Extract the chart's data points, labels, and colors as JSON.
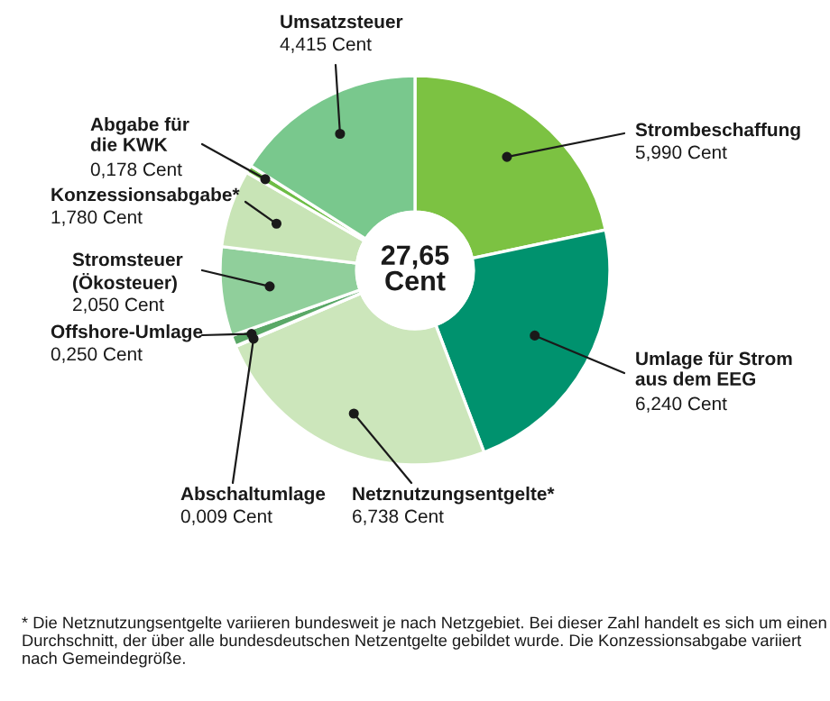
{
  "chart_data": {
    "type": "donut",
    "categories": [
      "Strombeschaffung",
      "Umlage für Strom\naus dem EEG",
      "Netznutzungsentgelte*",
      "Abschaltumlage",
      "Offshore-Umlage",
      "Stromsteuer\n(Ökosteuer)",
      "Konzessionsabgabe*",
      "Abgabe für\ndie KWK",
      "Umsatzsteuer"
    ],
    "values": [
      5.99,
      6.24,
      6.738,
      0.009,
      0.25,
      2.05,
      1.78,
      0.178,
      4.415
    ],
    "value_labels": [
      "5,990 Cent",
      "6,240 Cent",
      "6,738 Cent",
      "0,009 Cent",
      "0,250 Cent",
      "2,050 Cent",
      "1,780 Cent",
      "0,178 Cent",
      "4,415 Cent"
    ],
    "colors": [
      "#7cc242",
      "#00926e",
      "#cce6bb",
      "#0a7d63",
      "#5aa867",
      "#90cf9b",
      "#c8e4b6",
      "#6dbd45",
      "#79c88d"
    ],
    "annotations": [
      "27,65\nCent",
      "* Die Netznutzungsentgelte variieren bundesweit je nach Netzgebiet. Bei dieser Zahl handelt es sich um einen Durchschnitt, der über alle bundesdeutschen Netzentgelte gebildet wurde. Die Konzessionsabgabe variiert nach Gemeindegröße."
    ]
  }
}
